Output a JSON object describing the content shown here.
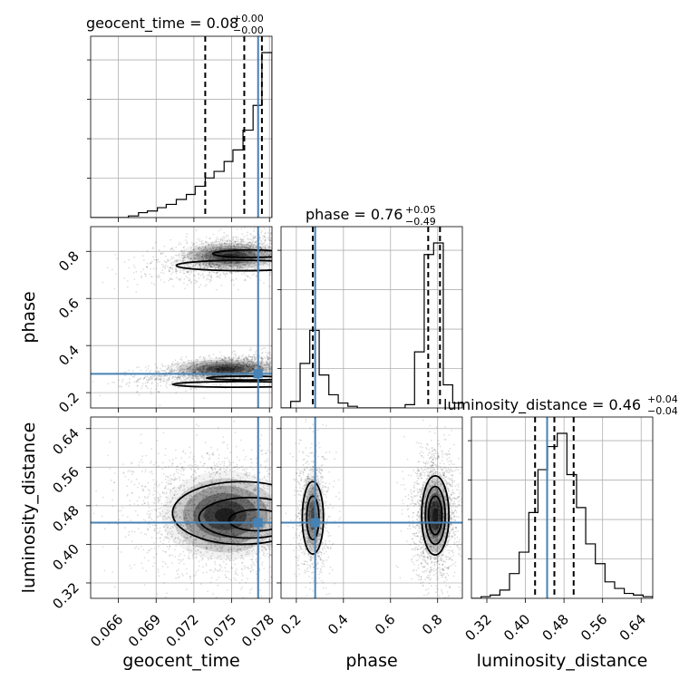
{
  "chart_data": {
    "type": "corner",
    "parameters": [
      "geocent_time",
      "phase",
      "luminosity_distance"
    ],
    "truth_color": "#4682b4",
    "ranges": {
      "geocent_time": [
        0.0638,
        0.0782
      ],
      "phase": [
        0.135,
        0.905
      ],
      "luminosity_distance": [
        0.288,
        0.664
      ]
    },
    "ticks": {
      "geocent_time": [
        0.066,
        0.069,
        0.072,
        0.075,
        0.078
      ],
      "phase": [
        0.2,
        0.4,
        0.6,
        0.8
      ],
      "luminosity_distance": [
        0.32,
        0.4,
        0.48,
        0.56,
        0.64
      ]
    },
    "tick_labels": {
      "geocent_time": [
        "0.066",
        "0.069",
        "0.072",
        "0.075",
        "0.078"
      ],
      "phase": [
        "0.2",
        "0.4",
        "0.6",
        "0.8"
      ],
      "luminosity_distance": [
        "0.32",
        "0.40",
        "0.48",
        "0.56",
        "0.64"
      ]
    },
    "truths": {
      "geocent_time": 0.0771,
      "phase": 0.28,
      "luminosity_distance": 0.445
    },
    "titles": {
      "geocent_time": {
        "prefix": "geocent_time = ",
        "value": "0.08",
        "plus": "+0.00",
        "minus": "−0.00"
      },
      "phase": {
        "prefix": "phase = ",
        "value": "0.76",
        "plus": "+0.05",
        "minus": "−0.49"
      },
      "luminosity_distance": {
        "prefix": "luminosity_distance = ",
        "value": "0.46",
        "plus": "+0.04",
        "minus": "−0.04"
      }
    },
    "quantiles": {
      "geocent_time": [
        0.0729,
        0.076,
        0.0774
      ],
      "phase": [
        0.27,
        0.76,
        0.81
      ],
      "luminosity_distance": [
        0.42,
        0.46,
        0.5
      ]
    },
    "histograms": {
      "geocent_time": {
        "edges": [
          0.0638,
          0.0646,
          0.0653,
          0.0661,
          0.0668,
          0.0676,
          0.0683,
          0.0691,
          0.0698,
          0.0706,
          0.0714,
          0.0721,
          0.0729,
          0.0736,
          0.0744,
          0.0751,
          0.0759,
          0.0767,
          0.0774,
          0.0782
        ],
        "counts": [
          0.0,
          0.0,
          0.0,
          0.0,
          0.01,
          0.03,
          0.04,
          0.06,
          0.08,
          0.11,
          0.14,
          0.19,
          0.24,
          0.28,
          0.34,
          0.41,
          0.53,
          0.68,
          1.0
        ]
      },
      "phase": {
        "edges": [
          0.135,
          0.176,
          0.216,
          0.257,
          0.297,
          0.338,
          0.378,
          0.419,
          0.459,
          0.5,
          0.54,
          0.581,
          0.621,
          0.662,
          0.702,
          0.743,
          0.783,
          0.824,
          0.864,
          0.905
        ],
        "counts": [
          0.0,
          0.04,
          0.27,
          0.47,
          0.2,
          0.08,
          0.03,
          0.01,
          0.0,
          0.0,
          0.0,
          0.0,
          0.0,
          0.02,
          0.34,
          0.93,
          1.0,
          0.14,
          0.03
        ]
      },
      "luminosity_distance": {
        "edges": [
          0.288,
          0.308,
          0.327,
          0.347,
          0.367,
          0.387,
          0.407,
          0.426,
          0.446,
          0.466,
          0.486,
          0.506,
          0.525,
          0.545,
          0.565,
          0.585,
          0.605,
          0.624,
          0.644,
          0.664
        ],
        "counts": [
          0.0,
          0.01,
          0.02,
          0.05,
          0.15,
          0.28,
          0.52,
          0.78,
          0.92,
          1.0,
          0.75,
          0.55,
          0.33,
          0.21,
          0.1,
          0.06,
          0.03,
          0.02,
          0.01
        ]
      }
    },
    "axis_labels": {
      "x": [
        "geocent_time",
        "phase",
        "luminosity_distance"
      ],
      "y": [
        "phase",
        "luminosity_distance"
      ]
    }
  }
}
